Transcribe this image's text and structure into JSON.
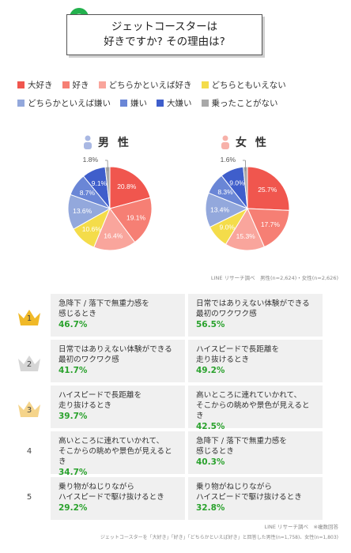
{
  "title": {
    "line1": "ジェットコースターは",
    "line2": "好きですか? その理由は?"
  },
  "legend": [
    {
      "label": "大好き",
      "color": "#f0564e"
    },
    {
      "label": "好き",
      "color": "#f67f74"
    },
    {
      "label": "どちらかといえば好き",
      "color": "#f9a59c"
    },
    {
      "label": "どちらともいえない",
      "color": "#f4dc4a"
    },
    {
      "label": "どちらかといえば嫌い",
      "color": "#93a8dc"
    },
    {
      "label": "嫌い",
      "color": "#6a86d6"
    },
    {
      "label": "大嫌い",
      "color": "#3f5ecb"
    },
    {
      "label": "乗ったことがない",
      "color": "#a8a8a8"
    }
  ],
  "labels": {
    "male": "男 性",
    "female": "女 性"
  },
  "chart_data": [
    {
      "type": "pie",
      "title": "男 性",
      "categories": [
        "大好き",
        "好き",
        "どちらかといえば好き",
        "どちらともいえない",
        "どちらかといえば嫌い",
        "嫌い",
        "大嫌い",
        "乗ったことがない"
      ],
      "values": [
        20.8,
        19.1,
        16.4,
        10.6,
        13.6,
        8.7,
        9.1,
        1.8
      ],
      "value_labels": [
        "20.8%",
        "19.1%",
        "16.4%",
        "10.6%",
        "13.6%",
        "8.7%",
        "9.1%",
        "1.8%"
      ]
    },
    {
      "type": "pie",
      "title": "女 性",
      "categories": [
        "大好き",
        "好き",
        "どちらかといえば好き",
        "どちらともいえない",
        "どちらかといえば嫌い",
        "嫌い",
        "大嫌い",
        "乗ったことがない"
      ],
      "values": [
        25.7,
        17.7,
        15.3,
        9.0,
        13.4,
        8.3,
        9.0,
        1.6
      ],
      "value_labels": [
        "25.7%",
        "17.7%",
        "15.3%",
        "9.0%",
        "13.4%",
        "8.3%",
        "9.0%",
        "1.6%"
      ]
    }
  ],
  "source1": "LINE リサーチ調べ　男性(n=2,624)・女性(n=2,626)",
  "ranking": [
    {
      "rank": "1",
      "male": {
        "reason": "急降下 / 落下で無重力感を\n感じるとき",
        "pct": "46.7%"
      },
      "female": {
        "reason": "日常ではありえない体験ができる\n最初のワクワク感",
        "pct": "56.5%"
      }
    },
    {
      "rank": "2",
      "male": {
        "reason": "日常ではありえない体験ができる\n最初のワクワク感",
        "pct": "41.7%"
      },
      "female": {
        "reason": "ハイスピードで長距離を\n走り抜けるとき",
        "pct": "49.2%"
      }
    },
    {
      "rank": "3",
      "male": {
        "reason": "ハイスピードで長距離を\n走り抜けるとき",
        "pct": "39.7%"
      },
      "female": {
        "reason": "高いところに連れていかれて、\nそこからの眺めや景色が見えるとき",
        "pct": "42.5%"
      }
    },
    {
      "rank": "4",
      "male": {
        "reason": "高いところに連れていかれて、\nそこからの眺めや景色が見えるとき",
        "pct": "34.7%"
      },
      "female": {
        "reason": "急降下 / 落下で無重力感を\n感じるとき",
        "pct": "40.3%"
      }
    },
    {
      "rank": "5",
      "male": {
        "reason": "乗り物がねじりながら\nハイスピードで駆け抜けるとき",
        "pct": "29.2%"
      },
      "female": {
        "reason": "乗り物がねじりながら\nハイスピードで駆け抜けるとき",
        "pct": "32.8%"
      }
    }
  ],
  "source2": "LINE リサーチ調べ　※複数回答",
  "note": "ジェットコースターを「大好き」「好き」「どちらかといえば好き」と回答した男性(n=1,758)、女性(n=1,803)"
}
